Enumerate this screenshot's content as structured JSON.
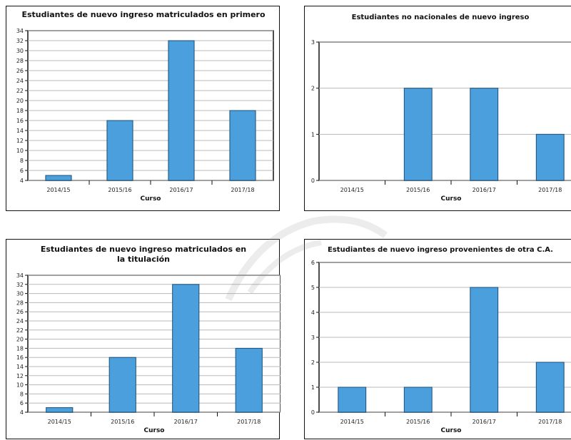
{
  "colors": {
    "bar": "#4a9fdc",
    "bar_stroke": "#1a4f7a",
    "grid": "#b8b8b8"
  },
  "chart_data": [
    {
      "type": "bar",
      "title": "Estudiantes de nuevo ingreso matriculados en primero",
      "title_lines": [
        "Estudiantes de nuevo ingreso matriculados en primero"
      ],
      "xlabel": "Curso",
      "ylabel": "",
      "categories": [
        "2014/15",
        "2015/16",
        "2016/17",
        "2017/18"
      ],
      "values": [
        5,
        16,
        32,
        18
      ],
      "ylim": [
        4,
        34
      ],
      "yticks": [
        4,
        6,
        8,
        10,
        12,
        14,
        16,
        18,
        20,
        22,
        24,
        26,
        28,
        30,
        32,
        34
      ],
      "grid": true
    },
    {
      "type": "bar",
      "title": "Estudiantes no nacionales de nuevo ingreso",
      "title_lines": [
        "Estudiantes no nacionales de nuevo ingreso"
      ],
      "xlabel": "Curso",
      "ylabel": "",
      "categories": [
        "2014/15",
        "2015/16",
        "2016/17",
        "2017/18"
      ],
      "values": [
        0,
        2,
        2,
        1
      ],
      "ylim": [
        0,
        3
      ],
      "yticks": [
        0,
        1,
        2,
        3
      ],
      "grid": true
    },
    {
      "type": "bar",
      "title": "Estudiantes de nuevo ingreso matriculados en la titulación",
      "title_lines": [
        "Estudiantes de nuevo ingreso matriculados en",
        "la titulación"
      ],
      "xlabel": "Curso",
      "ylabel": "",
      "categories": [
        "2014/15",
        "2015/16",
        "2016/17",
        "2017/18"
      ],
      "values": [
        5,
        16,
        32,
        18
      ],
      "ylim": [
        4,
        34
      ],
      "yticks": [
        4,
        6,
        8,
        10,
        12,
        14,
        16,
        18,
        20,
        22,
        24,
        26,
        28,
        30,
        32,
        34
      ],
      "grid": true
    },
    {
      "type": "bar",
      "title": "Estudiantes de nuevo ingreso provenientes de otra C.A.",
      "title_lines": [
        "Estudiantes de nuevo ingreso provenientes de otra C.A."
      ],
      "xlabel": "Curso",
      "ylabel": "",
      "categories": [
        "2014/15",
        "2015/16",
        "2016/17",
        "2017/18"
      ],
      "values": [
        1,
        1,
        5,
        2
      ],
      "ylim": [
        0,
        6
      ],
      "yticks": [
        0,
        1,
        2,
        3,
        4,
        5,
        6
      ],
      "grid": true
    }
  ]
}
